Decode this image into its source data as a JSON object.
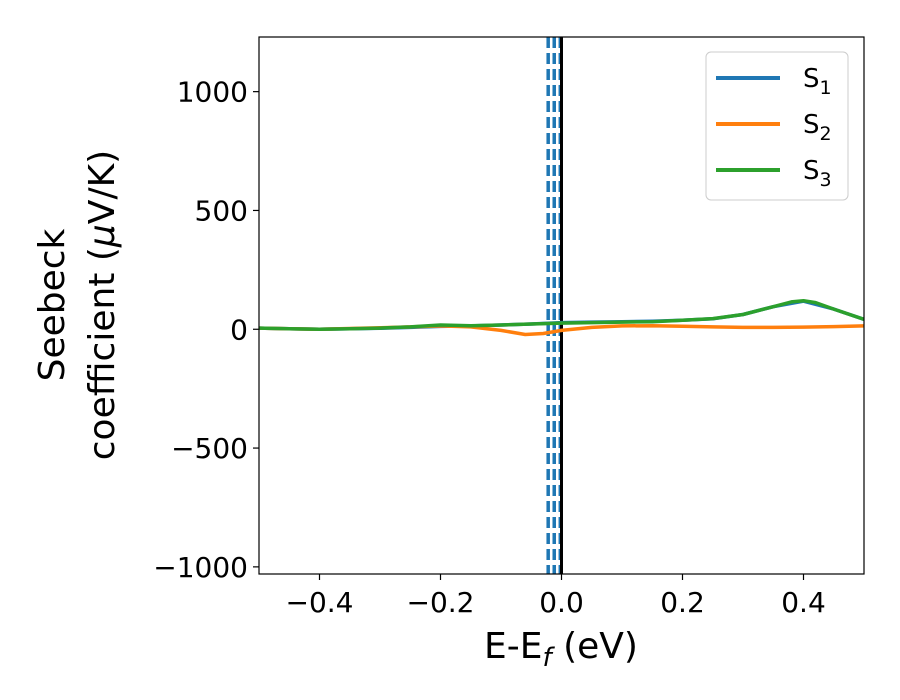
{
  "chart_data": {
    "type": "line",
    "xlabel": {
      "base": "E-E",
      "sub": "f",
      "suffix": " (eV)"
    },
    "ylabel": {
      "line1": "Seebeck",
      "line2_prefix": "coefficient  (",
      "mu": "μ",
      "line2_suffix": "V/K)"
    },
    "xlim": [
      -0.5,
      0.5
    ],
    "ylim": [
      -1030,
      1230
    ],
    "xticks": [
      -0.4,
      -0.2,
      0.0,
      0.2,
      0.4
    ],
    "xtick_labels": [
      "−0.4",
      "−0.2",
      "0.0",
      "0.2",
      "0.4"
    ],
    "yticks": [
      1000,
      500,
      0,
      -500,
      -1000
    ],
    "ytick_labels": [
      "1000",
      "500",
      "0",
      "−500",
      "−1000"
    ],
    "legend_position": "top-right",
    "vlines": [
      {
        "x": -0.022,
        "style": "dashed",
        "color": "#1f77b4"
      },
      {
        "x": -0.012,
        "style": "dashed",
        "color": "#1f77b4"
      },
      {
        "x": -0.002,
        "style": "dashed",
        "color": "#1f77b4"
      },
      {
        "x": 0.0,
        "style": "solid",
        "color": "#000000"
      }
    ],
    "series": [
      {
        "name": "S",
        "sub": "1",
        "color": "#1f77b4",
        "x": [
          -0.5,
          -0.45,
          -0.4,
          -0.35,
          -0.3,
          -0.25,
          -0.2,
          -0.15,
          -0.1,
          -0.05,
          0.0,
          0.05,
          0.1,
          0.15,
          0.2,
          0.25,
          0.3,
          0.35,
          0.4,
          0.45,
          0.5
        ],
        "y": [
          5,
          2,
          0,
          2,
          4,
          8,
          12,
          14,
          18,
          22,
          28,
          30,
          32,
          34,
          38,
          44,
          62,
          95,
          118,
          85,
          42
        ]
      },
      {
        "name": "S",
        "sub": "2",
        "color": "#ff7f0e",
        "x": [
          -0.5,
          -0.45,
          -0.4,
          -0.35,
          -0.3,
          -0.25,
          -0.2,
          -0.15,
          -0.1,
          -0.06,
          -0.03,
          0.0,
          0.05,
          0.1,
          0.15,
          0.2,
          0.25,
          0.3,
          0.35,
          0.4,
          0.45,
          0.5
        ],
        "y": [
          5,
          2,
          0,
          3,
          6,
          10,
          14,
          10,
          -5,
          -22,
          -18,
          -5,
          8,
          14,
          15,
          13,
          10,
          8,
          8,
          9,
          11,
          14
        ]
      },
      {
        "name": "S",
        "sub": "3",
        "color": "#2ca02c",
        "x": [
          -0.5,
          -0.45,
          -0.4,
          -0.35,
          -0.3,
          -0.25,
          -0.2,
          -0.15,
          -0.1,
          -0.05,
          0.0,
          0.05,
          0.1,
          0.15,
          0.2,
          0.25,
          0.3,
          0.35,
          0.38,
          0.4,
          0.42,
          0.45,
          0.5
        ],
        "y": [
          5,
          2,
          0,
          2,
          5,
          10,
          18,
          15,
          18,
          22,
          26,
          28,
          30,
          32,
          38,
          45,
          62,
          95,
          115,
          120,
          112,
          85,
          42
        ]
      }
    ]
  }
}
